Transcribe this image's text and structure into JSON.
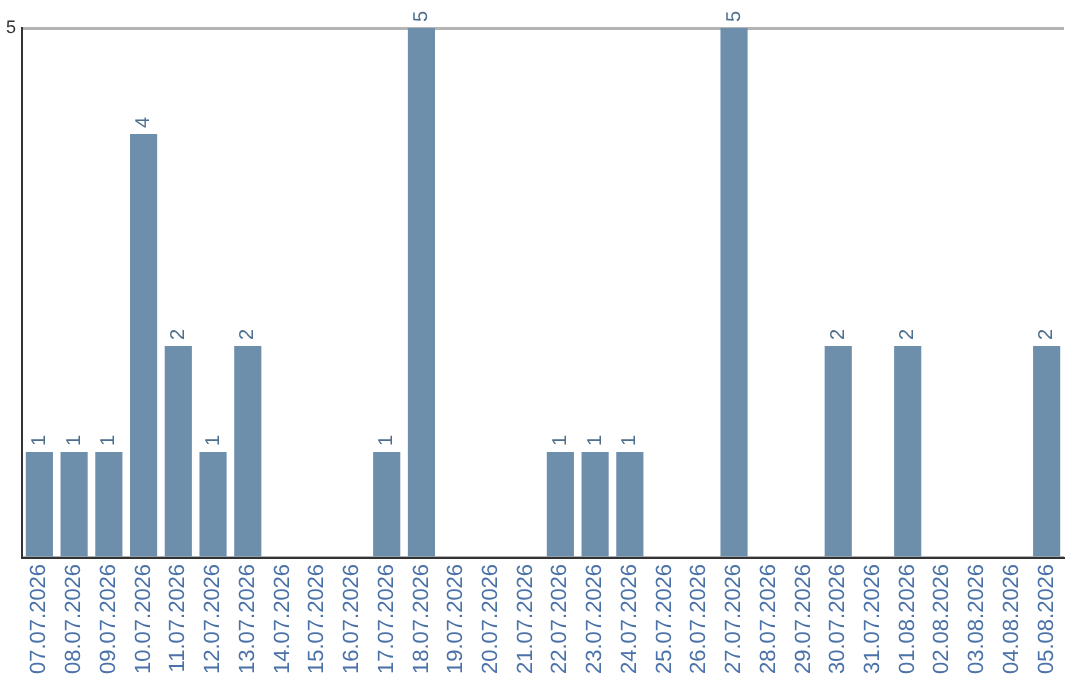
{
  "chart_data": {
    "type": "bar",
    "categories": [
      "07.07.2026",
      "08.07.2026",
      "09.07.2026",
      "10.07.2026",
      "11.07.2026",
      "12.07.2026",
      "13.07.2026",
      "14.07.2026",
      "15.07.2026",
      "16.07.2026",
      "17.07.2026",
      "18.07.2026",
      "19.07.2026",
      "20.07.2026",
      "21.07.2026",
      "22.07.2026",
      "23.07.2026",
      "24.07.2026",
      "25.07.2026",
      "26.07.2026",
      "27.07.2026",
      "28.07.2026",
      "29.07.2026",
      "30.07.2026",
      "31.07.2026",
      "01.08.2026",
      "02.08.2026",
      "03.08.2026",
      "04.08.2026",
      "05.08.2026"
    ],
    "values": [
      1,
      1,
      1,
      4,
      2,
      1,
      2,
      0,
      0,
      0,
      1,
      5,
      0,
      0,
      0,
      1,
      1,
      1,
      0,
      0,
      5,
      0,
      0,
      2,
      0,
      2,
      0,
      0,
      0,
      2
    ],
    "value_labels": [
      "1",
      "1",
      "1",
      "4",
      "2",
      "1",
      "2",
      null,
      null,
      null,
      "1",
      "5",
      null,
      null,
      null,
      "1",
      "1",
      "1",
      null,
      null,
      "5",
      null,
      null,
      "2",
      null,
      "2",
      null,
      null,
      null,
      "2"
    ],
    "color": "#6d8fac",
    "ylim": [
      0,
      5
    ],
    "yticks": [
      {
        "value": 0,
        "label": null
      },
      5
    ],
    "grid": "y",
    "legend": false
  }
}
